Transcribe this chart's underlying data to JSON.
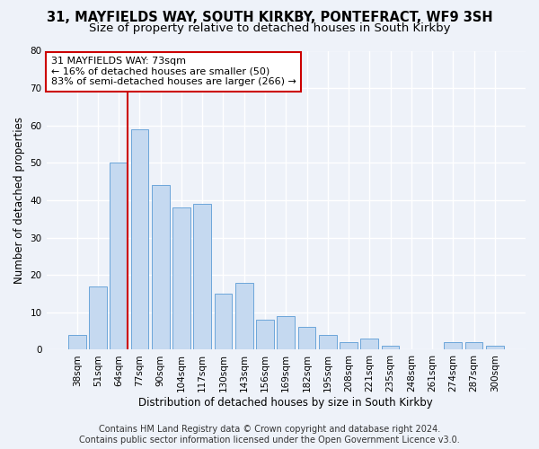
{
  "title_line1": "31, MAYFIELDS WAY, SOUTH KIRKBY, PONTEFRACT, WF9 3SH",
  "title_line2": "Size of property relative to detached houses in South Kirkby",
  "xlabel": "Distribution of detached houses by size in South Kirkby",
  "ylabel": "Number of detached properties",
  "categories": [
    "38sqm",
    "51sqm",
    "64sqm",
    "77sqm",
    "90sqm",
    "104sqm",
    "117sqm",
    "130sqm",
    "143sqm",
    "156sqm",
    "169sqm",
    "182sqm",
    "195sqm",
    "208sqm",
    "221sqm",
    "235sqm",
    "248sqm",
    "261sqm",
    "274sqm",
    "287sqm",
    "300sqm"
  ],
  "values": [
    4,
    17,
    50,
    59,
    44,
    38,
    39,
    15,
    18,
    8,
    9,
    6,
    4,
    2,
    3,
    1,
    0,
    0,
    2,
    2,
    1
  ],
  "bar_color": "#c5d9f0",
  "bar_edge_color": "#5b9bd5",
  "vline_x_idx": 2,
  "vline_color": "#cc0000",
  "annotation_line1": "31 MAYFIELDS WAY: 73sqm",
  "annotation_line2": "← 16% of detached houses are smaller (50)",
  "annotation_line3": "83% of semi-detached houses are larger (266) →",
  "annotation_box_color": "#ffffff",
  "annotation_box_edge_color": "#cc0000",
  "ylim": [
    0,
    80
  ],
  "yticks": [
    0,
    10,
    20,
    30,
    40,
    50,
    60,
    70,
    80
  ],
  "footer_line1": "Contains HM Land Registry data © Crown copyright and database right 2024.",
  "footer_line2": "Contains public sector information licensed under the Open Government Licence v3.0.",
  "bg_color": "#eef2f9",
  "grid_color": "#ffffff",
  "title_fontsize": 10.5,
  "subtitle_fontsize": 9.5,
  "axis_label_fontsize": 8.5,
  "tick_fontsize": 7.5,
  "annotation_fontsize": 8,
  "footer_fontsize": 7
}
